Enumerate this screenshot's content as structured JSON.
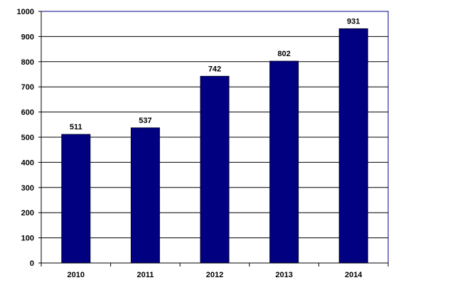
{
  "colors": {
    "bar": "#000080",
    "bar_stroke": "#000033",
    "grid": "#000000",
    "plot_border": "#000080",
    "background": "#ffffff"
  },
  "chart_data": {
    "type": "bar",
    "categories": [
      "2010",
      "2011",
      "2012",
      "2013",
      "2014"
    ],
    "series": [
      {
        "values": [
          511,
          537,
          742,
          802,
          931
        ]
      }
    ],
    "data_labels": [
      "511",
      "537",
      "742",
      "802",
      "931"
    ],
    "yticks": [
      "0",
      "100",
      "200",
      "300",
      "400",
      "500",
      "600",
      "700",
      "800",
      "900",
      "1000"
    ],
    "ylim": [
      0,
      1000
    ],
    "grid": true,
    "legend": "none",
    "title": "",
    "xlabel": "",
    "ylabel": ""
  }
}
